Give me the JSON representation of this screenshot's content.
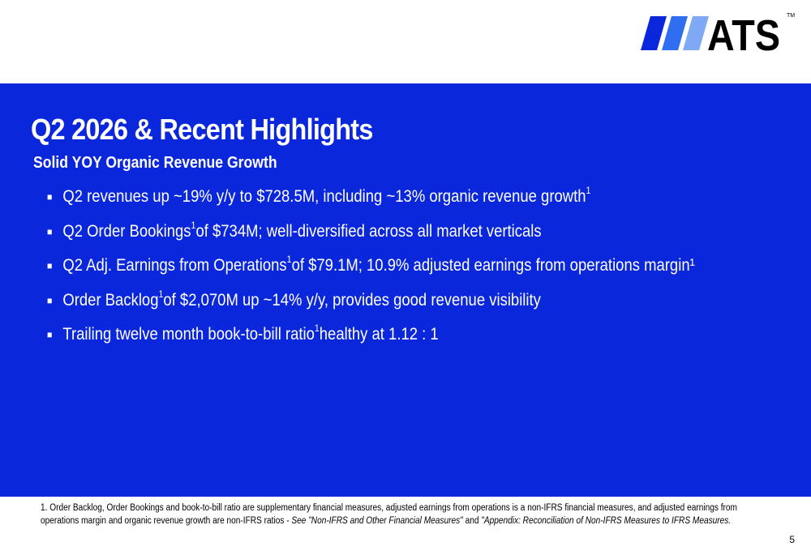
{
  "logo": {
    "text": "ATS",
    "tm": "TM",
    "colors": [
      "#0a27dc",
      "#2f6ef0",
      "#7fa8f5"
    ]
  },
  "title": "Q2 2026 & Recent Highlights",
  "subtitle": "Solid YOY Organic Revenue Growth",
  "bullets": [
    {
      "text": "Q2 revenues up ~19% y/y to $728.5M, including ~13% organic revenue growth",
      "sup": "1",
      "after": ""
    },
    {
      "text": "Q2 Order Bookings",
      "sup": "1",
      "after": " of $734M; well-diversified across all market verticals"
    },
    {
      "text": "Q2 Adj. Earnings from Operations",
      "sup": "1",
      "after": " of $79.1M; 10.9% adjusted earnings from operations margin¹"
    },
    {
      "text": "Order Backlog",
      "sup": "1",
      "after": " of $2,070M up ~14% y/y, provides good revenue visibility"
    },
    {
      "text": "Trailing twelve month book-to-bill ratio",
      "sup": "1",
      "after": " healthy at 1.12 : 1"
    }
  ],
  "footnote": {
    "line1": "1. Order Backlog, Order Bookings and book-to-bill ratio are supplementary financial measures, adjusted earnings from operations is a non-IFRS financial measures, and adjusted earnings from",
    "line2": "operations margin and organic revenue growth are non-IFRS ratios  - ",
    "italic1": "See \"Non-IFRS and Other Financial Measures\"",
    "and": " and ",
    "italic2": "\"Appendix: Reconciliation of Non-IFRS Measures to IFRS Measures."
  },
  "page_number": "5",
  "colors": {
    "panel": "#0a27dc"
  }
}
